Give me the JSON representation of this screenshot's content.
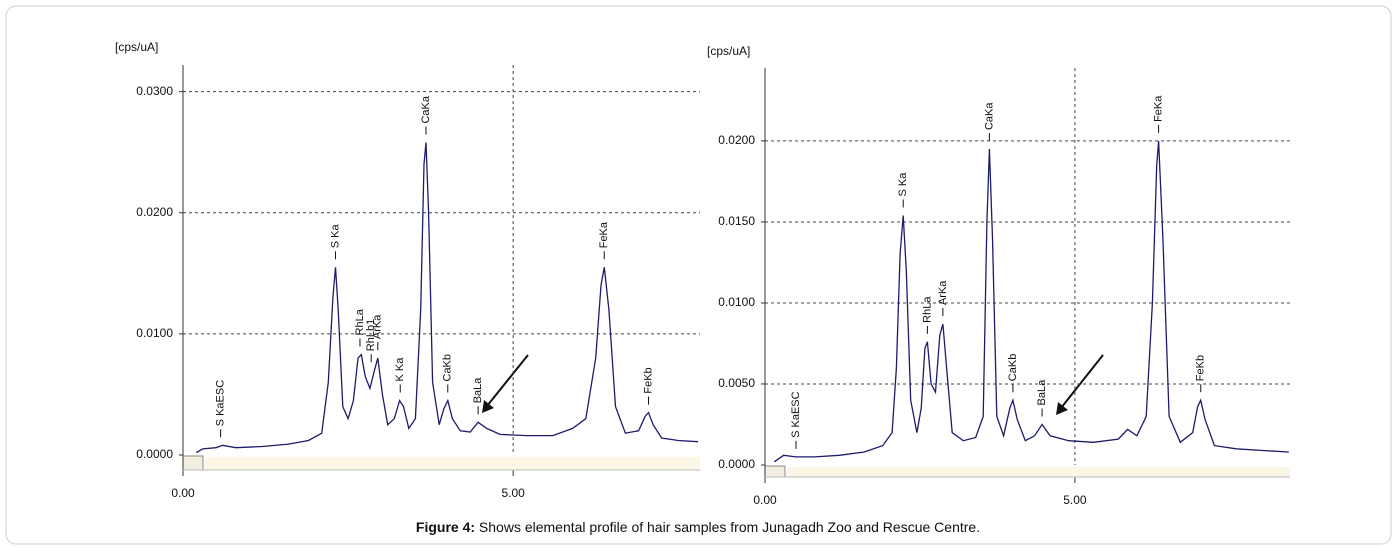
{
  "chart_data": [
    {
      "type": "line",
      "y_label": "[cps/uA]",
      "xlim": [
        0,
        7.83
      ],
      "ylim": [
        0,
        0.0322
      ],
      "xticks": [
        {
          "value": 0,
          "label": "0.00"
        },
        {
          "value": 5,
          "label": "5.00"
        }
      ],
      "yticks": [
        {
          "value": 0,
          "label": "0.0000"
        },
        {
          "value": 0.01,
          "label": "0.0100"
        },
        {
          "value": 0.02,
          "label": "0.0200"
        },
        {
          "value": 0.03,
          "label": "0.0300"
        }
      ],
      "grid": true,
      "x": [
        0.2,
        0.3,
        0.5,
        0.6,
        0.8,
        1.2,
        1.6,
        1.9,
        2.1,
        2.2,
        2.27,
        2.31,
        2.35,
        2.42,
        2.5,
        2.58,
        2.65,
        2.7,
        2.76,
        2.83,
        2.9,
        2.95,
        3.02,
        3.1,
        3.2,
        3.28,
        3.34,
        3.42,
        3.52,
        3.6,
        3.65,
        3.68,
        3.72,
        3.78,
        3.88,
        3.95,
        4.01,
        4.08,
        4.2,
        4.35,
        4.47,
        4.6,
        4.8,
        5.2,
        5.6,
        5.9,
        6.1,
        6.25,
        6.33,
        6.38,
        6.45,
        6.55,
        6.7,
        6.9,
        7.0,
        7.05,
        7.12,
        7.25,
        7.5,
        7.8
      ],
      "series": [
        {
          "color": "#1c1c6b",
          "values": [
            0.0002,
            0.0005,
            0.0006,
            0.0008,
            0.0006,
            0.0007,
            0.0009,
            0.0012,
            0.0018,
            0.006,
            0.013,
            0.0155,
            0.012,
            0.004,
            0.003,
            0.0045,
            0.008,
            0.0083,
            0.0065,
            0.0055,
            0.007,
            0.008,
            0.005,
            0.0025,
            0.003,
            0.0045,
            0.004,
            0.0022,
            0.003,
            0.012,
            0.024,
            0.0258,
            0.02,
            0.006,
            0.0025,
            0.0038,
            0.0045,
            0.003,
            0.002,
            0.0019,
            0.0027,
            0.0022,
            0.0017,
            0.0016,
            0.0016,
            0.0022,
            0.003,
            0.008,
            0.014,
            0.0155,
            0.012,
            0.004,
            0.0018,
            0.002,
            0.0032,
            0.0035,
            0.0025,
            0.0014,
            0.0012,
            0.0011
          ]
        }
      ],
      "annotations": [
        {
          "text": "S KaESC",
          "x": 0.57
        },
        {
          "text": "S Ka",
          "x": 2.31
        },
        {
          "text": "RhLa",
          "x": 2.68
        },
        {
          "text": "RhLb1",
          "x": 2.85
        },
        {
          "text": "ArKa",
          "x": 2.95
        },
        {
          "text": "K Ka",
          "x": 3.29
        },
        {
          "text": "CaKa",
          "x": 3.68
        },
        {
          "text": "CaKb",
          "x": 4.01
        },
        {
          "text": "BaLa",
          "x": 4.47
        },
        {
          "text": "FeKa",
          "x": 6.38
        },
        {
          "text": "FeKb",
          "x": 7.05
        }
      ]
    },
    {
      "type": "line",
      "y_label": "[cps/uA]",
      "xlim": [
        0,
        8.47
      ],
      "ylim": [
        0,
        0.0245
      ],
      "xticks": [
        {
          "value": 0,
          "label": "0.00"
        },
        {
          "value": 5,
          "label": "5.00"
        }
      ],
      "yticks": [
        {
          "value": 0,
          "label": "0.0000"
        },
        {
          "value": 0.005,
          "label": "0.0050"
        },
        {
          "value": 0.01,
          "label": "0.0100"
        },
        {
          "value": 0.015,
          "label": "0.0150"
        },
        {
          "value": 0.02,
          "label": "0.0200"
        }
      ],
      "grid": true,
      "x": [
        0.15,
        0.3,
        0.5,
        0.8,
        1.2,
        1.6,
        1.9,
        2.05,
        2.12,
        2.18,
        2.23,
        2.28,
        2.35,
        2.45,
        2.52,
        2.58,
        2.62,
        2.68,
        2.75,
        2.82,
        2.87,
        2.93,
        3.02,
        3.2,
        3.4,
        3.52,
        3.58,
        3.62,
        3.67,
        3.74,
        3.85,
        3.95,
        4.0,
        4.07,
        4.2,
        4.35,
        4.47,
        4.6,
        4.9,
        5.3,
        5.7,
        5.85,
        6.0,
        6.15,
        6.25,
        6.32,
        6.35,
        6.42,
        6.52,
        6.7,
        6.9,
        6.98,
        7.03,
        7.1,
        7.25,
        7.6,
        8.0,
        8.45
      ],
      "series": [
        {
          "color": "#1c1c6b",
          "values": [
            0.0002,
            0.0006,
            0.0005,
            0.0005,
            0.0006,
            0.0008,
            0.0012,
            0.002,
            0.006,
            0.013,
            0.0154,
            0.012,
            0.004,
            0.002,
            0.0035,
            0.0072,
            0.0076,
            0.005,
            0.0045,
            0.008,
            0.0087,
            0.006,
            0.002,
            0.0015,
            0.0017,
            0.003,
            0.015,
            0.0195,
            0.014,
            0.003,
            0.0018,
            0.0035,
            0.004,
            0.0028,
            0.0015,
            0.0018,
            0.0025,
            0.0018,
            0.0015,
            0.0014,
            0.0016,
            0.0022,
            0.0018,
            0.003,
            0.01,
            0.0185,
            0.02,
            0.014,
            0.003,
            0.0014,
            0.002,
            0.0036,
            0.004,
            0.0028,
            0.0012,
            0.001,
            0.0009,
            0.0008
          ]
        }
      ],
      "annotations": [
        {
          "text": "S KaESC",
          "x": 0.5
        },
        {
          "text": "S Ka",
          "x": 2.23
        },
        {
          "text": "RhLa",
          "x": 2.62
        },
        {
          "text": "ArKa",
          "x": 2.87
        },
        {
          "text": "CaKa",
          "x": 3.62
        },
        {
          "text": "CaKb",
          "x": 4.0
        },
        {
          "text": "BaLa",
          "x": 4.47
        },
        {
          "text": "FeKa",
          "x": 6.35
        },
        {
          "text": "FeKb",
          "x": 7.03
        }
      ]
    }
  ],
  "caption": {
    "label": "Figure 4:",
    "text": "Shows elemental profile of hair samples from Junagadh Zoo and Rescue Centre."
  }
}
